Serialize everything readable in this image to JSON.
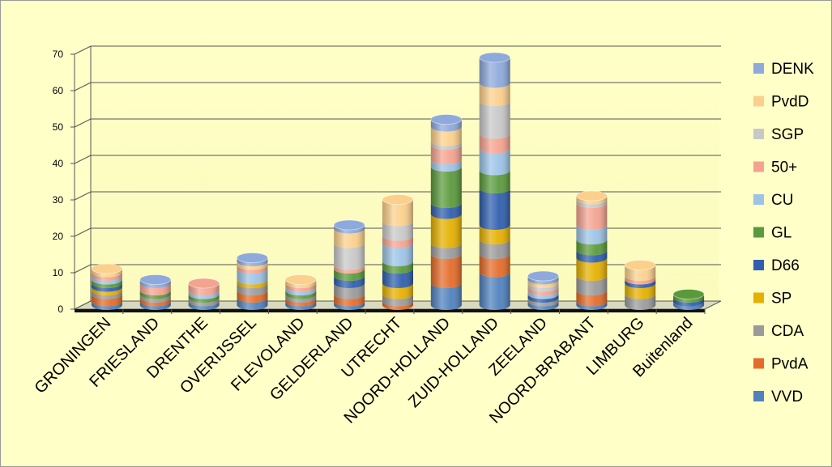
{
  "chart_data": {
    "type": "bar",
    "stacked": true,
    "style": "3d-cylinder",
    "categories": [
      "GRONINGEN",
      "FRIESLAND",
      "DRENTHE",
      "OVERIJSSEL",
      "FLEVOLAND",
      "GELDERLAND",
      "UTRECHT",
      "NOORD-HOLLAND",
      "ZUID-HOLLAND",
      "ZEELAND",
      "NOORD-BRABANT",
      "LIMBURG",
      "Buitenland"
    ],
    "ylim": [
      0,
      70
    ],
    "yticks": [
      0,
      10,
      20,
      30,
      40,
      50,
      60,
      70
    ],
    "grid": true,
    "legend_position": "right",
    "series": [
      {
        "name": "VVD",
        "color": "#4f81bd",
        "values": [
          1,
          1,
          1,
          2,
          1,
          1,
          0,
          6,
          9,
          1,
          1,
          0,
          1
        ]
      },
      {
        "name": "PvdA",
        "color": "#e46c2a",
        "values": [
          2,
          1,
          0,
          2,
          1,
          2,
          1,
          8,
          5,
          0,
          3,
          0,
          0
        ]
      },
      {
        "name": "CDA",
        "color": "#9a9a9a",
        "values": [
          1,
          1,
          1,
          2,
          1,
          3,
          2,
          3,
          4,
          1,
          4,
          3,
          0
        ]
      },
      {
        "name": "SP",
        "color": "#e5b000",
        "values": [
          1,
          0,
          0,
          1,
          0,
          0,
          3,
          8,
          4,
          0,
          5,
          3,
          0
        ]
      },
      {
        "name": "D66",
        "color": "#2f5fae",
        "values": [
          1,
          0,
          0,
          0,
          0,
          2,
          4,
          3,
          10,
          1,
          2,
          1,
          1
        ]
      },
      {
        "name": "GL",
        "color": "#5b9a3c",
        "values": [
          1,
          1,
          1,
          0,
          1,
          2,
          2,
          10,
          5,
          0,
          3,
          0,
          1
        ]
      },
      {
        "name": "CU",
        "color": "#9dc3e6",
        "values": [
          1,
          0,
          1,
          3,
          1,
          0,
          5,
          2,
          6,
          1,
          4,
          0,
          0
        ]
      },
      {
        "name": "50+",
        "color": "#f4a390",
        "values": [
          1,
          2,
          2,
          1,
          1,
          1,
          2,
          4,
          4,
          1,
          6,
          1,
          0
        ]
      },
      {
        "name": "SGP",
        "color": "#c8c8c8",
        "values": [
          0,
          0,
          0,
          0,
          0,
          6,
          4,
          1,
          9,
          1,
          1,
          0,
          0
        ]
      },
      {
        "name": "PvdD",
        "color": "#fbd08c",
        "values": [
          1,
          0,
          0,
          1,
          1,
          4,
          6,
          4,
          5,
          1,
          1,
          3,
          0
        ]
      },
      {
        "name": "DENK",
        "color": "#8ea9db",
        "values": [
          0,
          1,
          0,
          1,
          0,
          1,
          0,
          2,
          7,
          1,
          0,
          0,
          0
        ]
      }
    ]
  }
}
